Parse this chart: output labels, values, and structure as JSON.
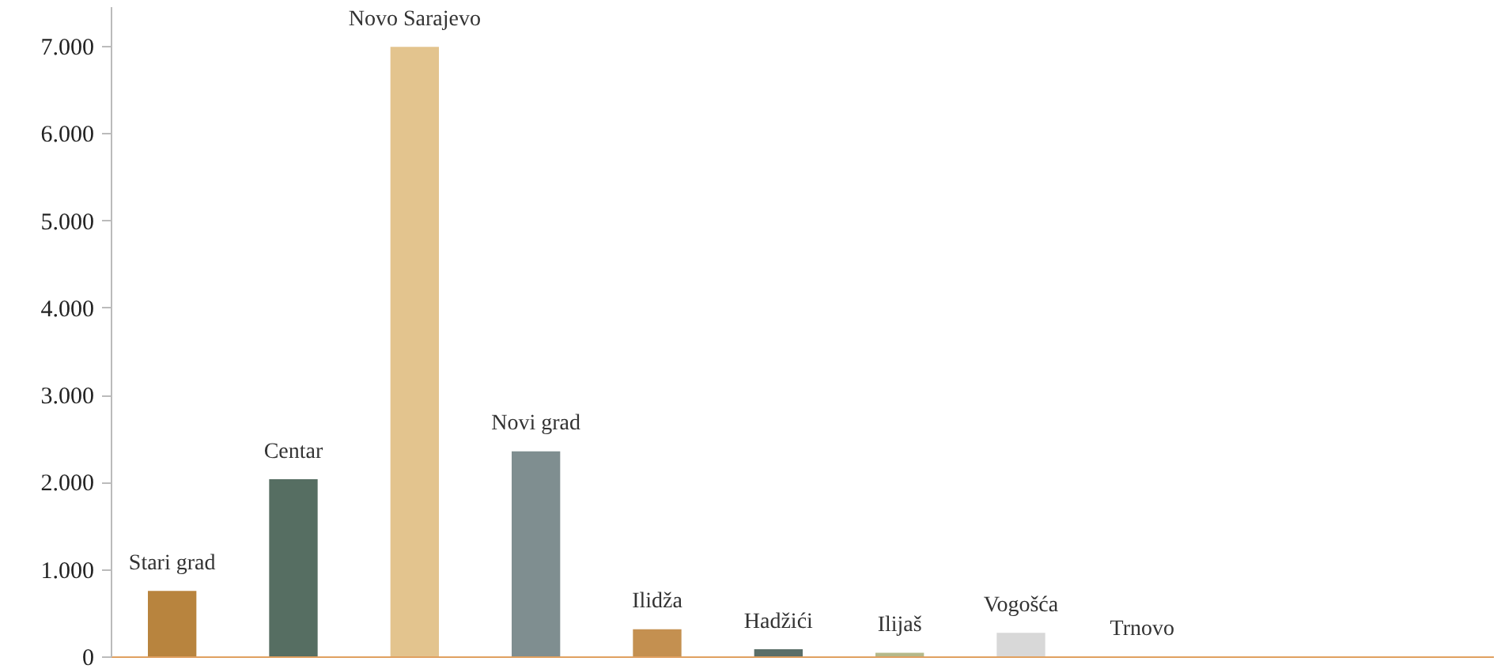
{
  "chart_data": {
    "type": "bar",
    "categories": [
      "Stari grad",
      "Centar",
      "Novo Sarajevo",
      "Novi grad",
      "Ilidža",
      "Hadžići",
      "Ilijaš",
      "Vogošća",
      "Trnovo"
    ],
    "values": [
      760,
      2040,
      7000,
      2360,
      320,
      90,
      50,
      280,
      10
    ],
    "colors": [
      "#b8843e",
      "#566e62",
      "#e3c48e",
      "#7f8e90",
      "#c49050",
      "#5a6e68",
      "#b5b98a",
      "#d8d8d8",
      "#c8a878"
    ],
    "ylim": [
      0,
      7000
    ],
    "yticks": [
      {
        "value": 0,
        "label": "0"
      },
      {
        "value": 1000,
        "label": "1.000"
      },
      {
        "value": 2000,
        "label": "2.000"
      },
      {
        "value": 3000,
        "label": "3.000"
      },
      {
        "value": 4000,
        "label": "4.000"
      },
      {
        "value": 5000,
        "label": "5.000"
      },
      {
        "value": 6000,
        "label": "6.000"
      },
      {
        "value": 7000,
        "label": "7.000"
      }
    ],
    "grid": false,
    "tick_labels": "y"
  }
}
